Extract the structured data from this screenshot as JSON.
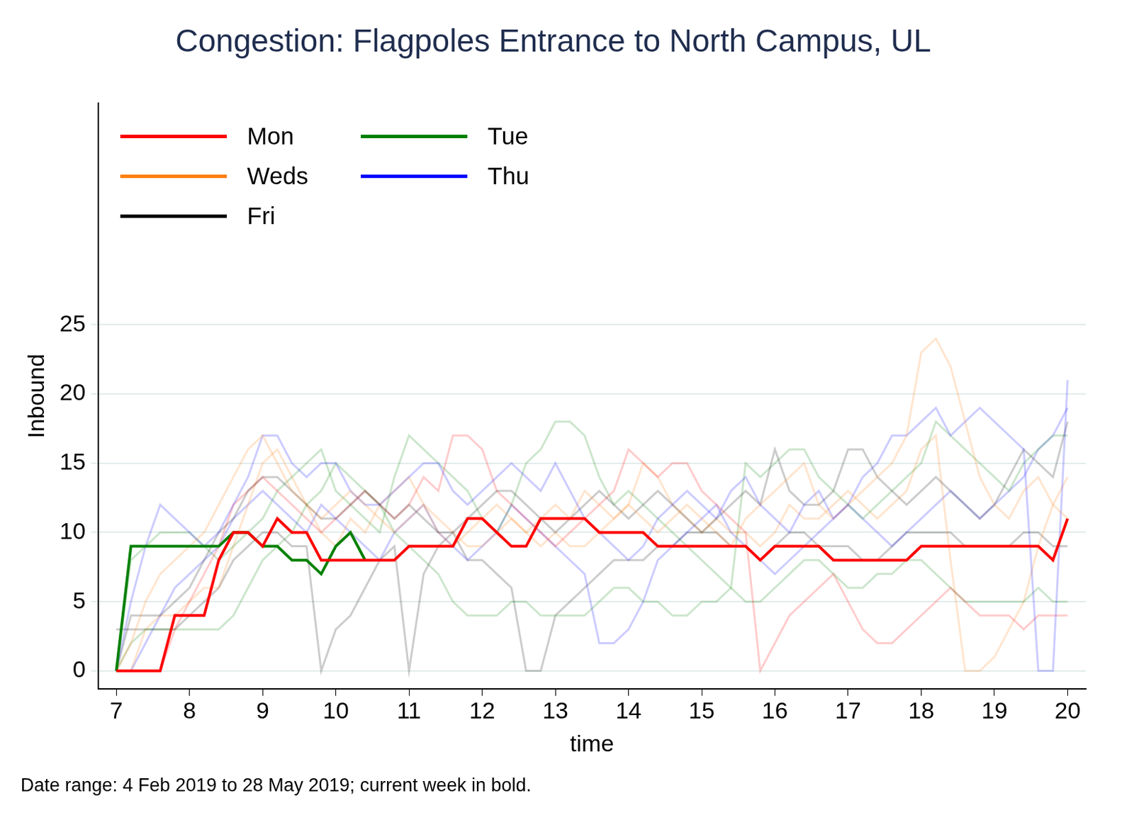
{
  "chart_data": {
    "type": "line",
    "title": "Congestion: Flagpoles Entrance to North Campus, UL",
    "caption": "Date range: 4 Feb 2019 to 28 May 2019; current week in bold.",
    "x_label": "time",
    "y_label": "Inbound",
    "xlim": [
      6.75,
      20.25
    ],
    "xticks": [
      7,
      8,
      9,
      10,
      11,
      12,
      13,
      14,
      15,
      16,
      17,
      18,
      19,
      20
    ],
    "ylim": [
      -1.3,
      41
    ],
    "yticks": [
      0,
      5,
      10,
      15,
      20,
      25
    ],
    "grid": true,
    "legend": "top-left",
    "x": [
      7,
      7.2,
      7.4,
      7.6,
      7.8,
      8,
      8.2,
      8.4,
      8.6,
      8.8,
      9,
      9.2,
      9.4,
      9.6,
      9.8,
      10,
      10.2,
      10.4,
      10.6,
      10.8,
      11,
      11.2,
      11.4,
      11.6,
      11.8,
      12,
      12.2,
      12.4,
      12.6,
      12.8,
      13,
      13.2,
      13.4,
      13.6,
      13.8,
      14,
      14.2,
      14.4,
      14.6,
      14.8,
      15,
      15.2,
      15.4,
      15.6,
      15.8,
      16,
      16.2,
      16.4,
      16.6,
      16.8,
      17,
      17.2,
      17.4,
      17.6,
      17.8,
      18,
      18.2,
      18.4,
      18.6,
      18.8,
      19,
      19.2,
      19.4,
      19.6,
      19.8,
      20
    ],
    "series": [
      {
        "name": "Mon",
        "color": "#ff0000",
        "line_style": "bold",
        "values": [
          0,
          0,
          0,
          0,
          4,
          4,
          4,
          8,
          10,
          10,
          9,
          11,
          10,
          10,
          8,
          8,
          8,
          8,
          8,
          8,
          9,
          9,
          9,
          9,
          11,
          11,
          10,
          9,
          9,
          11,
          11,
          11,
          11,
          10,
          10,
          10,
          10,
          9,
          9,
          9,
          9,
          9,
          9,
          9,
          8,
          9,
          9,
          9,
          9,
          8,
          8,
          8,
          8,
          8,
          8,
          9,
          9,
          9,
          9,
          9,
          9,
          9,
          9,
          9,
          8,
          11
        ]
      },
      {
        "name": "Tue",
        "color": "#008000",
        "line_style": "bold",
        "values": [
          0,
          9,
          9,
          9,
          9,
          9,
          9,
          9,
          10,
          10,
          9,
          9,
          8,
          8,
          7,
          9,
          10,
          8,
          null,
          null,
          null,
          null,
          null,
          null,
          null,
          null,
          null,
          null,
          null,
          null,
          null,
          null,
          null,
          null,
          null,
          null,
          null,
          null,
          null,
          null,
          null,
          null,
          null,
          null,
          null,
          null,
          null,
          null,
          null,
          null,
          null,
          null,
          null,
          null,
          null,
          null,
          null,
          null,
          null,
          null,
          null,
          null,
          null,
          null,
          null,
          null
        ]
      },
      {
        "name": "Weds",
        "color": "#ff7f0e",
        "line_style": "faint",
        "values": [
          0,
          2,
          5,
          7,
          8,
          9,
          10,
          12,
          14,
          16,
          17,
          15,
          13,
          12,
          11,
          12,
          13,
          12,
          11,
          10,
          11,
          12,
          10,
          9,
          10,
          11,
          12,
          11,
          10,
          11,
          12,
          11,
          13,
          12,
          11,
          12,
          11,
          10,
          11,
          12,
          11,
          10,
          9,
          11,
          12,
          13,
          14,
          15,
          12,
          11,
          12,
          13,
          14,
          15,
          17,
          23,
          24,
          22,
          18,
          14,
          12,
          11,
          13,
          14,
          12,
          11
        ]
      },
      {
        "name": "Thu",
        "color": "#0000ff",
        "line_style": "faint",
        "values": [
          0,
          5,
          9,
          12,
          11,
          10,
          9,
          10,
          12,
          14,
          17,
          17,
          15,
          14,
          15,
          15,
          13,
          12,
          12,
          13,
          14,
          15,
          15,
          13,
          12,
          13,
          14,
          15,
          14,
          13,
          15,
          13,
          11,
          10,
          9,
          8,
          9,
          11,
          12,
          13,
          12,
          11,
          13,
          14,
          12,
          11,
          10,
          12,
          13,
          11,
          12,
          14,
          15,
          17,
          17,
          18,
          19,
          17,
          18,
          19,
          18,
          17,
          16,
          0,
          0,
          21
        ]
      },
      {
        "name": "Fri",
        "color": "#000000",
        "line_style": "faint",
        "values": [
          0,
          4,
          4,
          4,
          5,
          6,
          8,
          10,
          11,
          13,
          14,
          14,
          13,
          12,
          11,
          11,
          12,
          13,
          12,
          11,
          12,
          11,
          10,
          10,
          11,
          12,
          13,
          13,
          12,
          11,
          10,
          11,
          12,
          13,
          12,
          11,
          12,
          13,
          12,
          11,
          10,
          11,
          12,
          13,
          12,
          16,
          13,
          12,
          12,
          13,
          16,
          16,
          14,
          13,
          12,
          13,
          14,
          13,
          12,
          11,
          12,
          14,
          16,
          15,
          14,
          18
        ]
      },
      {
        "name": "Mon",
        "color": "#ff0000",
        "line_style": "faint",
        "values": [
          0,
          0,
          0,
          0,
          3,
          5,
          7,
          9,
          12,
          13,
          14,
          13,
          12,
          11,
          10,
          11,
          12,
          13,
          12,
          11,
          12,
          14,
          13,
          17,
          17,
          16,
          13,
          12,
          11,
          10,
          9,
          10,
          11,
          12,
          13,
          16,
          15,
          14,
          15,
          15,
          13,
          12,
          11,
          10,
          0,
          2,
          4,
          5,
          6,
          7,
          5,
          3,
          2,
          2,
          3,
          4,
          5,
          6,
          5,
          4,
          4,
          4,
          3,
          4,
          4,
          4
        ]
      },
      {
        "name": "Tue",
        "color": "#008000",
        "line_style": "faint",
        "values": [
          0,
          8,
          9,
          10,
          10,
          10,
          9,
          8,
          9,
          10,
          11,
          13,
          14,
          15,
          16,
          13,
          12,
          11,
          10,
          14,
          17,
          16,
          15,
          14,
          13,
          11,
          10,
          12,
          15,
          16,
          18,
          18,
          17,
          14,
          12,
          13,
          12,
          11,
          10,
          9,
          8,
          7,
          6,
          15,
          14,
          15,
          16,
          16,
          14,
          13,
          12,
          11,
          12,
          13,
          14,
          15,
          18,
          17,
          16,
          15,
          14,
          13,
          15,
          16,
          17,
          17
        ]
      },
      {
        "name": "Tue",
        "color": "#008000",
        "line_style": "faint",
        "values": [
          0,
          2,
          3,
          3,
          3,
          3,
          3,
          3,
          4,
          6,
          8,
          9,
          10,
          12,
          13,
          15,
          14,
          13,
          12,
          10,
          9,
          8,
          7,
          5,
          4,
          4,
          4,
          5,
          5,
          4,
          4,
          4,
          4,
          5,
          6,
          6,
          5,
          5,
          4,
          4,
          5,
          5,
          6,
          5,
          5,
          6,
          7,
          8,
          8,
          7,
          6,
          6,
          7,
          7,
          8,
          8,
          7,
          6,
          5,
          5,
          5,
          5,
          5,
          6,
          5,
          5
        ]
      },
      {
        "name": "Weds",
        "color": "#ff7f0e",
        "line_style": "faint",
        "values": [
          0,
          0,
          3,
          4,
          4,
          5,
          6,
          6,
          9,
          12,
          15,
          16,
          14,
          12,
          10,
          9,
          11,
          10,
          12,
          13,
          14,
          12,
          11,
          10,
          9,
          9,
          10,
          11,
          10,
          9,
          10,
          9,
          9,
          10,
          11,
          12,
          15,
          14,
          12,
          11,
          10,
          11,
          10,
          10,
          9,
          10,
          12,
          11,
          11,
          12,
          13,
          12,
          11,
          12,
          13,
          16,
          17,
          8,
          0,
          0,
          1,
          3,
          5,
          9,
          12,
          14
        ]
      },
      {
        "name": "Thu",
        "color": "#0000ff",
        "line_style": "faint",
        "values": [
          0,
          0,
          2,
          4,
          6,
          7,
          8,
          9,
          11,
          12,
          13,
          12,
          11,
          10,
          12,
          11,
          10,
          9,
          8,
          10,
          11,
          12,
          10,
          9,
          8,
          9,
          10,
          12,
          11,
          10,
          9,
          8,
          7,
          2,
          2,
          3,
          5,
          8,
          9,
          10,
          11,
          12,
          10,
          9,
          8,
          7,
          8,
          9,
          10,
          11,
          12,
          11,
          10,
          9,
          10,
          11,
          12,
          13,
          12,
          11,
          12,
          13,
          14,
          16,
          17,
          19
        ]
      },
      {
        "name": "Fri",
        "color": "#000000",
        "line_style": "faint",
        "values": [
          3,
          3,
          3,
          3,
          3,
          4,
          5,
          6,
          8,
          9,
          10,
          10,
          9,
          9,
          0,
          3,
          4,
          6,
          8,
          9,
          0,
          7,
          9,
          10,
          8,
          8,
          7,
          6,
          0,
          0,
          4,
          5,
          6,
          7,
          8,
          8,
          8,
          9,
          9,
          10,
          10,
          10,
          9,
          9,
          8,
          9,
          10,
          10,
          9,
          9,
          9,
          8,
          8,
          9,
          10,
          10,
          10,
          10,
          9,
          9,
          9,
          9,
          10,
          10,
          9,
          9
        ]
      }
    ]
  }
}
